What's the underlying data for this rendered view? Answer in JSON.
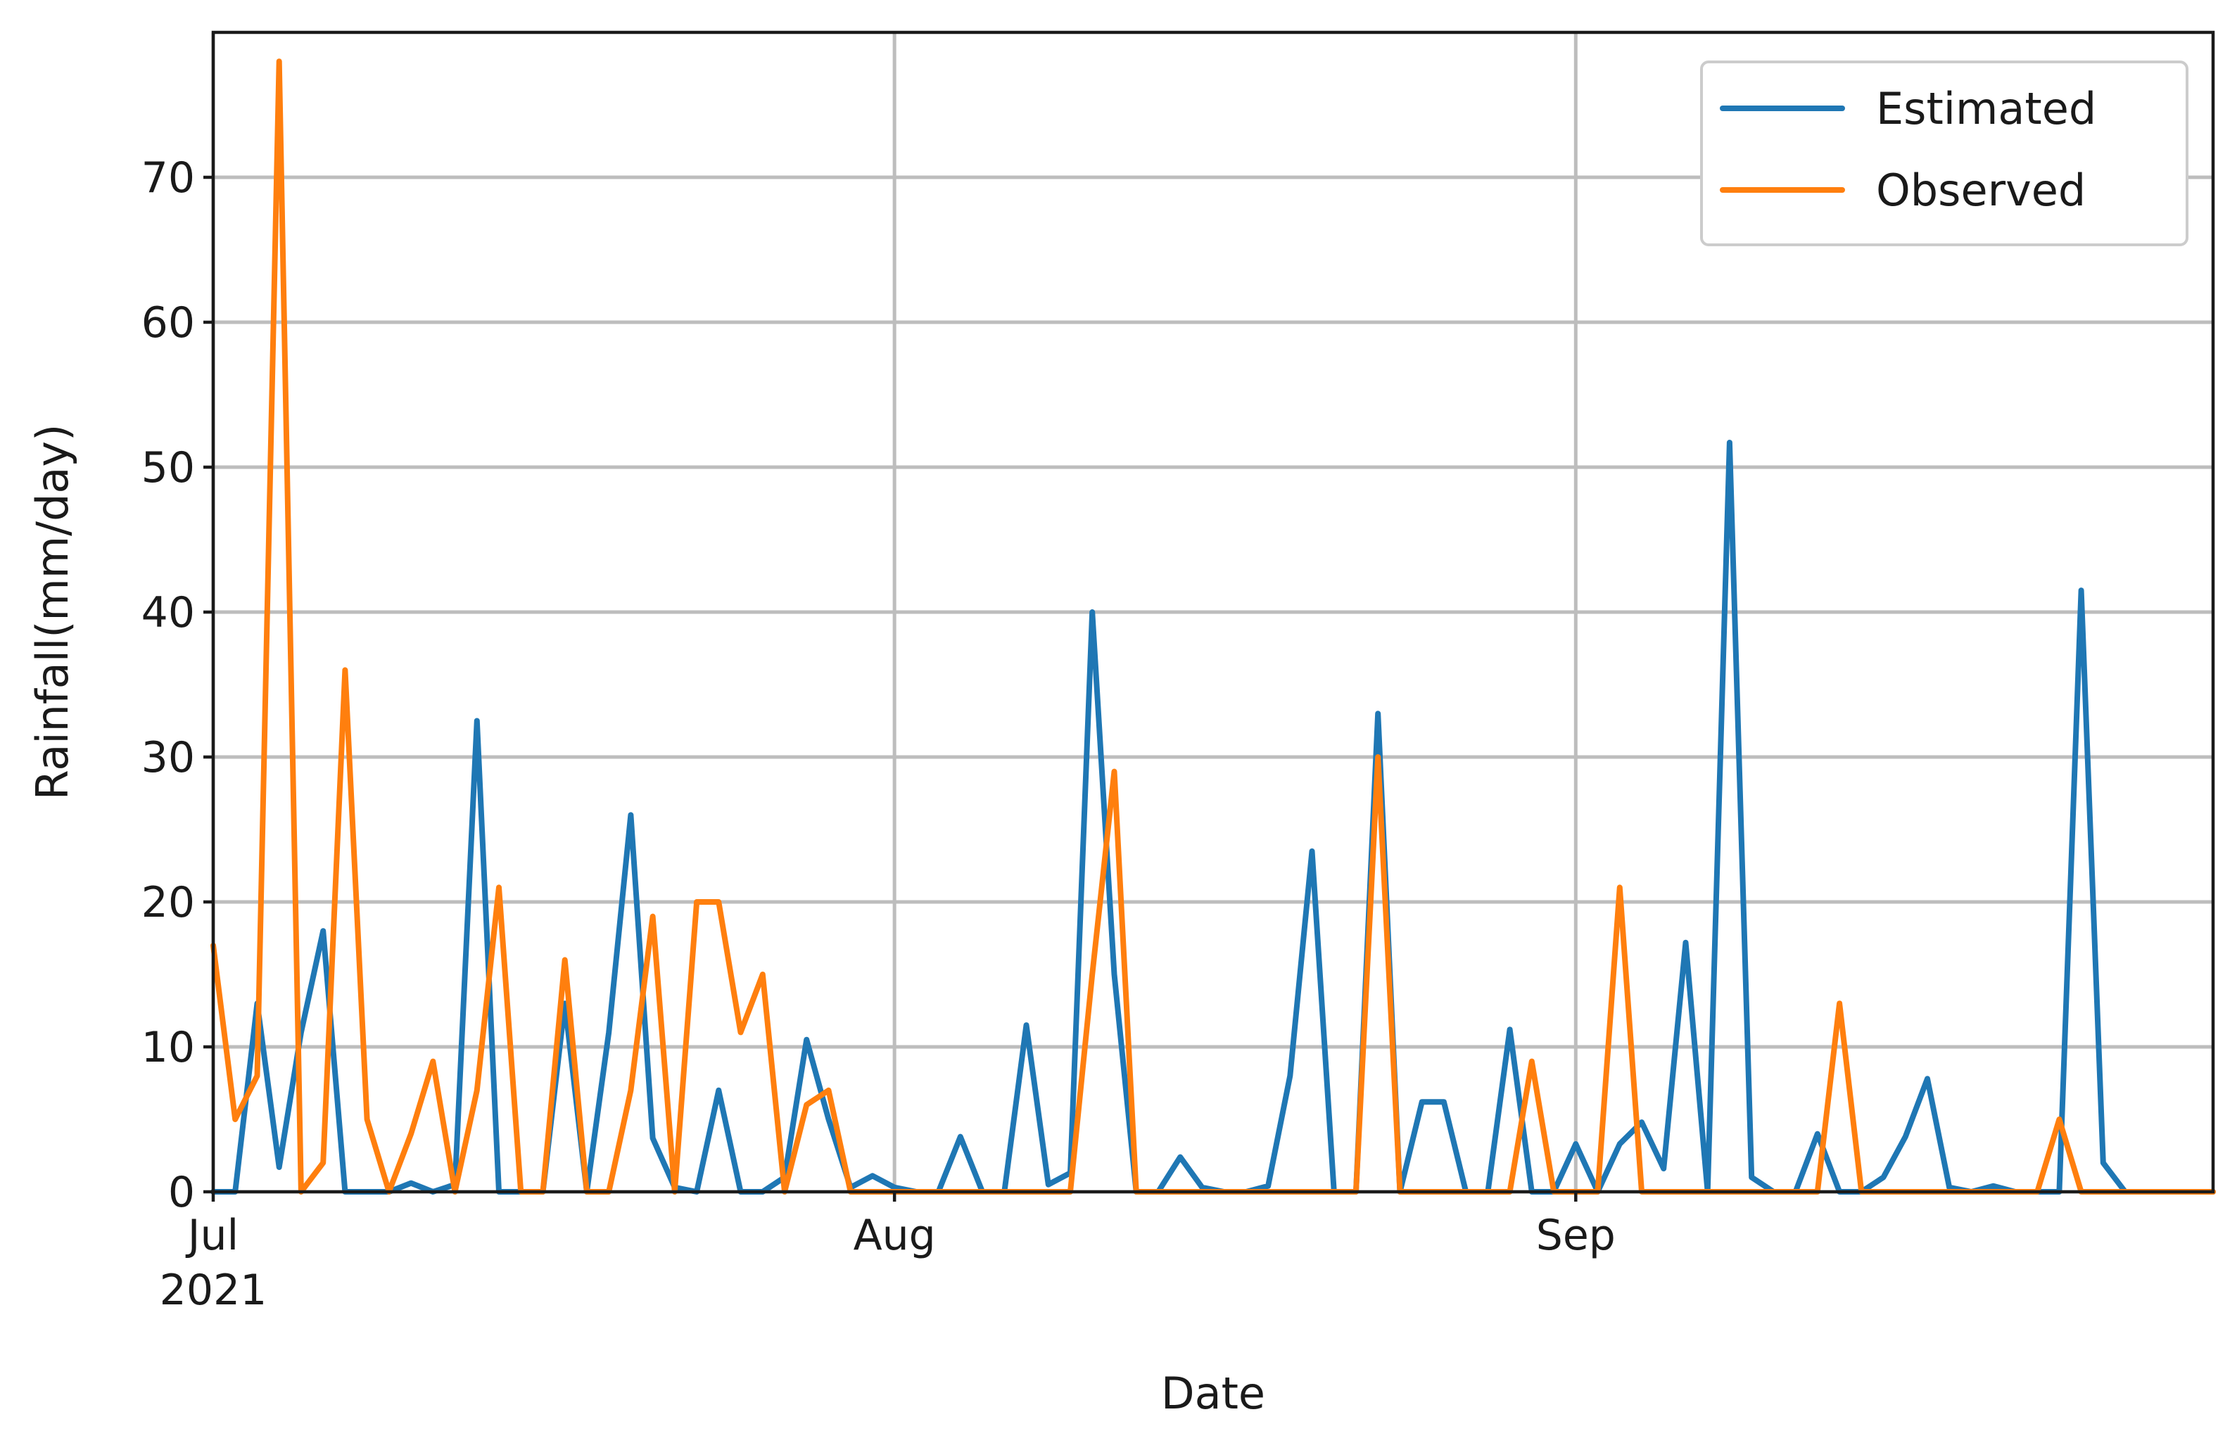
{
  "chart_data": {
    "type": "line",
    "title": "",
    "xlabel": "Date",
    "ylabel": "Rainfall(mm/day)",
    "x_start": "2021-07-01",
    "x_end": "2021-09-30",
    "xlim": [
      "2021-07-01",
      "2021-09-30"
    ],
    "ylim": [
      0,
      80
    ],
    "grid": true,
    "legend_position": "top-right",
    "x_ticks": [
      {
        "date": "2021-07-01",
        "label": "Jul",
        "sublabel": "2021"
      },
      {
        "date": "2021-08-01",
        "label": "Aug",
        "sublabel": ""
      },
      {
        "date": "2021-09-01",
        "label": "Sep",
        "sublabel": ""
      }
    ],
    "y_ticks": [
      0,
      10,
      20,
      30,
      40,
      50,
      60,
      70
    ],
    "series": [
      {
        "name": "Estimated",
        "color": "#1f77b4",
        "values": [
          0,
          0,
          13,
          1.7,
          11,
          18,
          0,
          0,
          0,
          0.6,
          0,
          0.5,
          32.5,
          0,
          0,
          0,
          13,
          0,
          11,
          26,
          3.7,
          0.3,
          0,
          7,
          0,
          0,
          1,
          10.5,
          5,
          0.3,
          1.1,
          0.3,
          0,
          0,
          3.8,
          0,
          0,
          11.5,
          0.5,
          1.3,
          40,
          15,
          0,
          0,
          2.4,
          0.3,
          0,
          0,
          0.4,
          8,
          23.5,
          0,
          0,
          33,
          0,
          6.2,
          6.2,
          0,
          0,
          11.2,
          0,
          0,
          3.3,
          0,
          3.3,
          4.8,
          1.6,
          17.2,
          0,
          51.7,
          1,
          0,
          0,
          4,
          0,
          0,
          1,
          3.8,
          7.8,
          0.3,
          0,
          0.4,
          0,
          0,
          0,
          41.5,
          2,
          0,
          0,
          0,
          0,
          0
        ]
      },
      {
        "name": "Observed",
        "color": "#ff7f0e",
        "values": [
          17,
          5,
          8,
          78,
          0,
          2,
          36,
          5,
          0,
          4,
          9,
          0,
          7,
          21,
          0,
          0,
          16,
          0,
          0,
          7,
          19,
          0,
          20,
          20,
          11,
          15,
          0,
          6,
          7,
          0,
          0,
          0,
          0,
          0,
          0,
          0,
          0,
          0,
          0,
          0,
          15,
          29,
          0,
          0,
          0,
          0,
          0,
          0,
          0,
          0,
          0,
          0,
          0,
          30,
          0,
          0,
          0,
          0,
          0,
          0,
          9,
          0,
          0,
          0,
          21,
          0,
          0,
          0,
          0,
          0,
          0,
          0,
          0,
          0,
          13,
          0,
          0,
          0,
          0,
          0,
          0,
          0,
          0,
          0,
          5,
          0,
          0,
          0,
          0,
          0,
          0,
          0
        ]
      }
    ]
  }
}
